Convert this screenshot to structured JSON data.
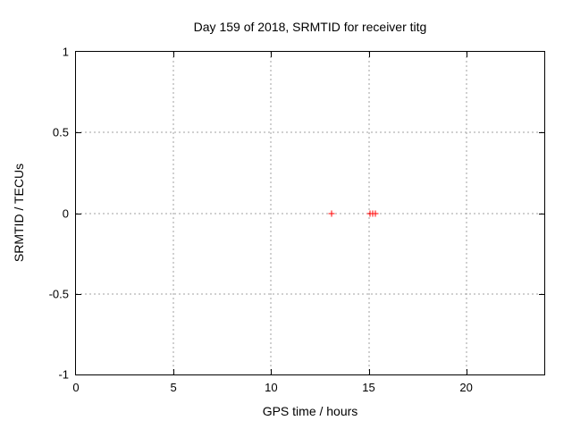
{
  "window": {
    "background": "#ffffff"
  },
  "chart_data": {
    "type": "scatter",
    "title": "Day 159 of 2018, SRMTID for receiver titg",
    "xlabel": "GPS time / hours",
    "ylabel": "SRMTID / TECUs",
    "xlim": [
      0,
      24
    ],
    "ylim": [
      -1,
      1
    ],
    "xticks": [
      0,
      5,
      10,
      15,
      20
    ],
    "yticks": [
      -1,
      -0.5,
      0,
      0.5,
      1
    ],
    "grid": "dotted",
    "legend": "none",
    "series": [
      {
        "name": "SRMTID",
        "marker": "plus",
        "color": "#ff0000",
        "points": [
          [
            13.1,
            0.0
          ],
          [
            15.05,
            0.0
          ],
          [
            15.2,
            0.0
          ],
          [
            15.35,
            0.0
          ]
        ]
      }
    ],
    "colors": {
      "border": "#000000",
      "grid": "#a0a0a0",
      "text": "#000000",
      "marker": "#ff0000"
    }
  }
}
